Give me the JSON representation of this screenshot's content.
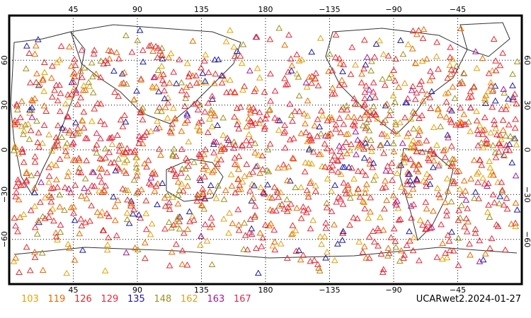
{
  "map": {
    "projection": "cylindrical equidistant",
    "center_longitude": 180,
    "gridline_style": "dotted",
    "x_axis": {
      "range": [
        0,
        360
      ],
      "tick_labels": [
        "45",
        "90",
        "135",
        "180",
        "−135",
        "−90",
        "−45"
      ]
    },
    "y_axis": {
      "range": [
        -90,
        90
      ],
      "tick_labels": [
        "60",
        "30",
        "0",
        "−30",
        "−60"
      ]
    }
  },
  "legend": {
    "items": [
      {
        "label": "103",
        "color": "#e8a200"
      },
      {
        "label": "119",
        "color": "#e86a00"
      },
      {
        "label": "126",
        "color": "#e62a2a"
      },
      {
        "label": "129",
        "color": "#e8283c"
      },
      {
        "label": "135",
        "color": "#1c1ca0"
      },
      {
        "label": "148",
        "color": "#9c9020"
      },
      {
        "label": "162",
        "color": "#e0a020"
      },
      {
        "label": "163",
        "color": "#9c1c9c"
      },
      {
        "label": "167",
        "color": "#e0284c"
      }
    ]
  },
  "source_label": "UCARwet2.2024-01-27",
  "chart_data": {
    "type": "scatter",
    "marker": "triangle",
    "description_of_points": "dense global scatter of station/occultation markers colored by satellite id",
    "series_names": [
      "103",
      "119",
      "126",
      "129",
      "135",
      "148",
      "162",
      "163",
      "167"
    ],
    "points_sample": [
      [
        30,
        60
      ],
      [
        60,
        40
      ],
      [
        100,
        20
      ],
      [
        150,
        10
      ],
      [
        200,
        -10
      ],
      [
        250,
        -30
      ],
      [
        300,
        -50
      ],
      [
        330,
        70
      ],
      [
        20,
        -60
      ],
      [
        120,
        50
      ]
    ]
  }
}
